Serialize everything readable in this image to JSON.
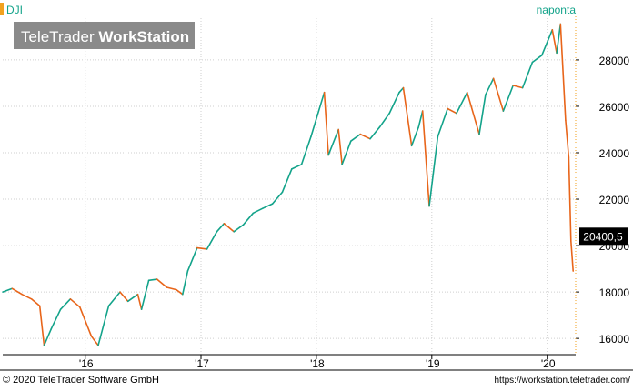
{
  "header": {
    "symbol": "DJI",
    "period": "naponta",
    "watermark_light": "TeleTrader ",
    "watermark_bold": "WorkStation"
  },
  "footer": {
    "copyright": "© 2020 TeleTrader Software GmbH",
    "url": "https://workstation.teletrader.com/"
  },
  "colors": {
    "up": "#13a38a",
    "down": "#e8651a",
    "axis_accent": "#f2a21f",
    "grid": "#cfcfcf",
    "last_price_bg": "#000000",
    "last_price_text": "#ffffff",
    "watermark_bg": "#8a8a8a",
    "watermark_text": "#ffffff"
  },
  "chart_data": {
    "type": "line",
    "title": "DJI",
    "subtitle": "naponta",
    "x_tick_labels": [
      "'16",
      "'17",
      "'18",
      "'19",
      "'20"
    ],
    "x_tick_dates": [
      "2016-01-01",
      "2017-01-01",
      "2018-01-01",
      "2019-01-01",
      "2020-01-01"
    ],
    "y_tick_labels": [
      "16000",
      "18000",
      "20000",
      "22000",
      "24000",
      "26000",
      "28000"
    ],
    "y_ticks": [
      16000,
      18000,
      20000,
      22000,
      24000,
      26000,
      28000
    ],
    "ylim": [
      15300,
      29800
    ],
    "xlim": [
      "2015-04-15",
      "2020-03-31"
    ],
    "last_value": 20400.5,
    "last_value_label": "20400,5",
    "grid": true,
    "series": [
      {
        "name": "DJI",
        "x": [
          "2015-04-15",
          "2015-05-15",
          "2015-06-15",
          "2015-07-15",
          "2015-08-10",
          "2015-08-24",
          "2015-09-15",
          "2015-10-15",
          "2015-11-15",
          "2015-12-15",
          "2016-01-20",
          "2016-02-11",
          "2016-03-15",
          "2016-04-20",
          "2016-05-15",
          "2016-06-15",
          "2016-06-27",
          "2016-07-20",
          "2016-08-15",
          "2016-09-15",
          "2016-10-15",
          "2016-11-04",
          "2016-11-20",
          "2016-12-20",
          "2017-01-20",
          "2017-02-20",
          "2017-03-15",
          "2017-04-15",
          "2017-05-15",
          "2017-06-15",
          "2017-07-15",
          "2017-08-15",
          "2017-09-15",
          "2017-10-15",
          "2017-11-15",
          "2017-12-15",
          "2018-01-26",
          "2018-02-08",
          "2018-03-12",
          "2018-03-23",
          "2018-04-20",
          "2018-05-20",
          "2018-06-20",
          "2018-07-20",
          "2018-08-20",
          "2018-09-20",
          "2018-10-03",
          "2018-10-29",
          "2018-11-20",
          "2018-12-03",
          "2018-12-24",
          "2019-01-20",
          "2019-02-20",
          "2019-03-20",
          "2019-04-23",
          "2019-05-31",
          "2019-06-20",
          "2019-07-15",
          "2019-08-15",
          "2019-09-15",
          "2019-10-15",
          "2019-11-15",
          "2019-12-15",
          "2020-01-17",
          "2020-01-31",
          "2020-02-12",
          "2020-02-28",
          "2020-03-09",
          "2020-03-16",
          "2020-03-23"
        ],
        "values": [
          18000,
          18150,
          17900,
          17700,
          17400,
          15700,
          16400,
          17250,
          17700,
          17350,
          16100,
          15700,
          17400,
          18000,
          17600,
          17900,
          17250,
          18500,
          18550,
          18200,
          18100,
          17900,
          18900,
          19900,
          19850,
          20600,
          20950,
          20600,
          20900,
          21400,
          21600,
          21800,
          22300,
          23300,
          23500,
          24700,
          26600,
          23900,
          25000,
          23500,
          24500,
          24800,
          24600,
          25100,
          25700,
          26600,
          26800,
          24300,
          25100,
          25800,
          21700,
          24700,
          25900,
          25700,
          26600,
          24800,
          26500,
          27200,
          25800,
          26900,
          26800,
          27900,
          28200,
          29300,
          28300,
          29550,
          25400,
          23800,
          20200,
          18900
        ]
      }
    ]
  }
}
